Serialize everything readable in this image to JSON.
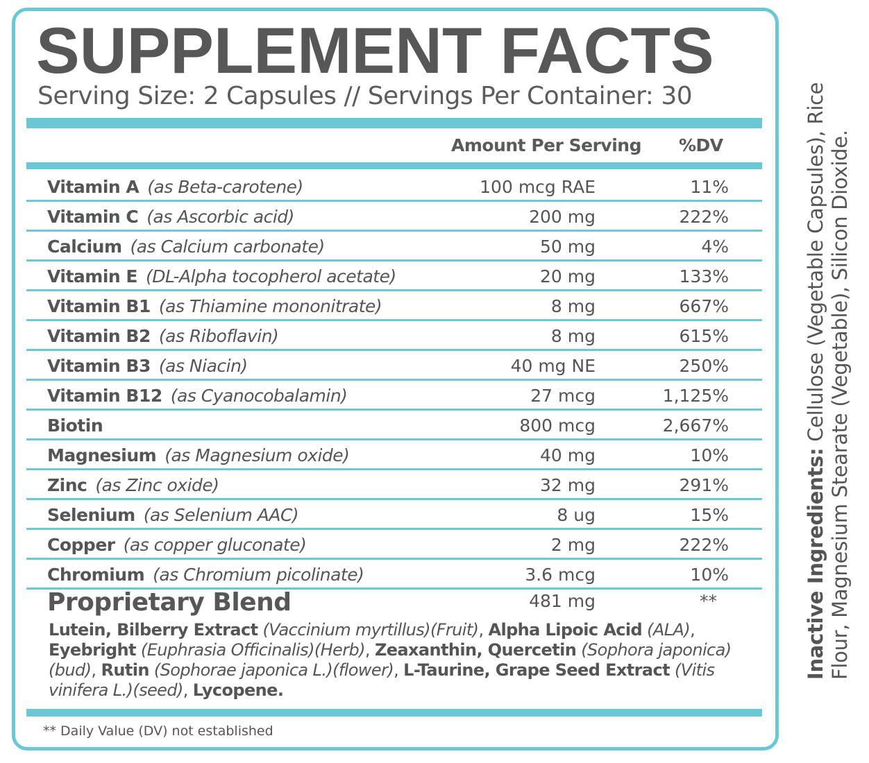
{
  "title": "SUPPLEMENT FACTS",
  "serving_line": "Serving Size: 2 Capsules // Servings Per Container: 30",
  "headers": {
    "amount": "Amount Per Serving",
    "dv": "%DV"
  },
  "nutrients": [
    {
      "name": "Vitamin A",
      "source": "(as Beta-carotene)",
      "amount": "100 mcg RAE",
      "dv": "11%"
    },
    {
      "name": "Vitamin C",
      "source": "(as Ascorbic acid)",
      "amount": "200 mg",
      "dv": "222%"
    },
    {
      "name": "Calcium",
      "source": "(as Calcium carbonate)",
      "amount": "50 mg",
      "dv": "4%"
    },
    {
      "name": "Vitamin E",
      "source": "(DL-Alpha tocopherol acetate)",
      "amount": "20 mg",
      "dv": "133%"
    },
    {
      "name": "Vitamin B1",
      "source": "(as Thiamine mononitrate)",
      "amount": "8 mg",
      "dv": "667%"
    },
    {
      "name": "Vitamin B2",
      "source": "(as Riboflavin)",
      "amount": "8 mg",
      "dv": "615%"
    },
    {
      "name": "Vitamin B3",
      "source": "(as Niacin)",
      "amount": "40 mg NE",
      "dv": "250%"
    },
    {
      "name": "Vitamin B12",
      "source": "(as Cyanocobalamin)",
      "amount": "27 mcg",
      "dv": "1,125%"
    },
    {
      "name": "Biotin",
      "source": "",
      "amount": "800 mcg",
      "dv": "2,667%"
    },
    {
      "name": "Magnesium",
      "source": "(as Magnesium oxide)",
      "amount": "40 mg",
      "dv": "10%"
    },
    {
      "name": "Zinc",
      "source": "(as Zinc oxide)",
      "amount": "32 mg",
      "dv": "291%"
    },
    {
      "name": "Selenium",
      "source": "(as Selenium AAC)",
      "amount": "8 ug",
      "dv": "15%"
    },
    {
      "name": "Copper",
      "source": "(as copper gluconate)",
      "amount": "2 mg",
      "dv": "222%"
    },
    {
      "name": "Chromium",
      "source": "(as Chromium picolinate)",
      "amount": "3.6 mcg",
      "dv": "10%"
    }
  ],
  "blend": {
    "name": "Proprietary Blend",
    "amount": "481 mg",
    "dv": "**",
    "parts": [
      {
        "b": "Lutein, Bilberry Extract",
        "i": " (Vaccinium myrtillus)(Fruit)",
        "t": ", "
      },
      {
        "b": "Alpha Lipoic Acid",
        "i": " (ALA)",
        "t": ", "
      },
      {
        "b": "Eyebright",
        "i": " (Euphrasia Officinalis)(Herb)",
        "t": ", "
      },
      {
        "b": "Zeaxanthin, Quercetin",
        "i": " (Sophora japonica)(bud)",
        "t": ", "
      },
      {
        "b": "Rutin",
        "i": " (Sophorae japonica L.)(flower)",
        "t": ", "
      },
      {
        "b": "L-Taurine, Grape Seed Extract",
        "i": " (Vitis vinifera L.)(seed)",
        "t": ", "
      },
      {
        "b": "Lycopene.",
        "i": "",
        "t": ""
      }
    ]
  },
  "footnote": "** Daily Value (DV) not established",
  "inactive": {
    "label": "Inactive Ingredients:",
    "text": " Cellulose (Vegetable Capsules), Rice Flour, Magnesium Stearate (Vegetable), Silicon Dioxide."
  },
  "colors": {
    "accent": "#6ac8d6",
    "text": "#555555"
  }
}
